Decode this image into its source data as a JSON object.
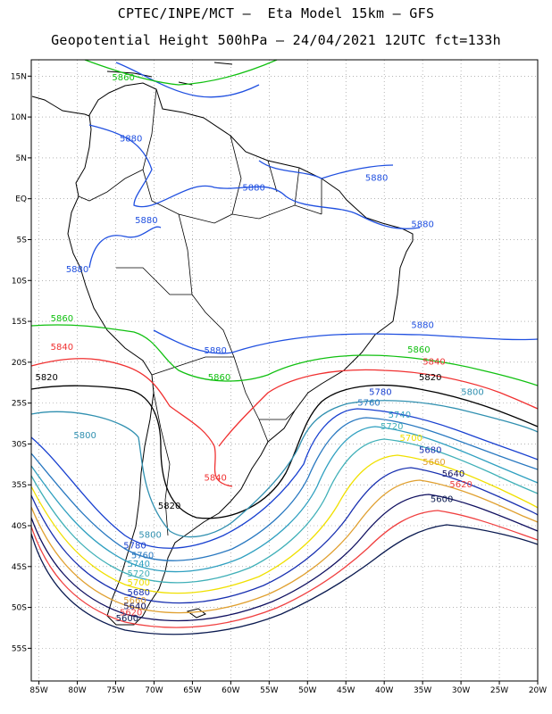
{
  "header": {
    "line1": "CPTEC/INPE/MCT –  Eta Model 15km – GFS",
    "line2": "Geopotential Height 500hPa – 24/04/2021 12UTC fct=133h"
  },
  "map": {
    "lon_range": [
      -86,
      -20
    ],
    "lat_range": [
      -59,
      17
    ],
    "lon_ticks": [
      "85W",
      "80W",
      "75W",
      "70W",
      "65W",
      "60W",
      "55W",
      "50W",
      "45W",
      "40W",
      "35W",
      "30W",
      "25W",
      "20W"
    ],
    "lat_ticks": [
      "15N",
      "10N",
      "5N",
      "EQ",
      "5S",
      "10S",
      "15S",
      "20S",
      "25S",
      "30S",
      "35S",
      "40S",
      "45S",
      "50S",
      "55S"
    ],
    "contours": [
      {
        "level": "5880",
        "color": "#2050e0"
      },
      {
        "level": "5860",
        "color": "#10c010"
      },
      {
        "level": "5840",
        "color": "#f03030"
      },
      {
        "level": "5820",
        "color": "#000000"
      },
      {
        "level": "5800",
        "color": "#3090b0"
      },
      {
        "level": "5780",
        "color": "#1840d0"
      },
      {
        "level": "5760",
        "color": "#2878c0"
      },
      {
        "level": "5740",
        "color": "#30a0c0"
      },
      {
        "level": "5720",
        "color": "#40b0b8"
      },
      {
        "level": "5700",
        "color": "#f0e000"
      },
      {
        "level": "5680",
        "color": "#1830b0"
      },
      {
        "level": "5660",
        "color": "#e0a030"
      },
      {
        "level": "5640",
        "color": "#101060"
      },
      {
        "level": "5620",
        "color": "#f04040"
      },
      {
        "level": "5600",
        "color": "#0a1a50"
      }
    ],
    "labels": [
      {
        "text": "5860",
        "lon": -74,
        "lat": 14.5,
        "color": "#10c010"
      },
      {
        "text": "5880",
        "lon": -73,
        "lat": 7,
        "color": "#2050e0"
      },
      {
        "text": "5880",
        "lon": -57,
        "lat": 1,
        "color": "#2050e0"
      },
      {
        "text": "5880",
        "lon": -41,
        "lat": 2.2,
        "color": "#2050e0"
      },
      {
        "text": "5880",
        "lon": -71,
        "lat": -3,
        "color": "#2050e0"
      },
      {
        "text": "5880",
        "lon": -35,
        "lat": -3.5,
        "color": "#2050e0"
      },
      {
        "text": "5880",
        "lon": -80,
        "lat": -9,
        "color": "#2050e0"
      },
      {
        "text": "5860",
        "lon": -82,
        "lat": -15,
        "color": "#10c010"
      },
      {
        "text": "5880",
        "lon": -35,
        "lat": -15.8,
        "color": "#2050e0"
      },
      {
        "text": "5880",
        "lon": -62,
        "lat": -18.9,
        "color": "#2050e0"
      },
      {
        "text": "5860",
        "lon": -35.5,
        "lat": -18.8,
        "color": "#10c010"
      },
      {
        "text": "5840",
        "lon": -82,
        "lat": -18.5,
        "color": "#f03030"
      },
      {
        "text": "5840",
        "lon": -33.5,
        "lat": -20.3,
        "color": "#f03030"
      },
      {
        "text": "5860",
        "lon": -61.5,
        "lat": -22.2,
        "color": "#10c010"
      },
      {
        "text": "5820",
        "lon": -84,
        "lat": -22.2,
        "color": "#000000"
      },
      {
        "text": "5820",
        "lon": -34,
        "lat": -22.2,
        "color": "#000000"
      },
      {
        "text": "5800",
        "lon": -28.5,
        "lat": -24,
        "color": "#3090b0"
      },
      {
        "text": "5780",
        "lon": -40.5,
        "lat": -24,
        "color": "#1840d0"
      },
      {
        "text": "5760",
        "lon": -42,
        "lat": -25.3,
        "color": "#2878c0"
      },
      {
        "text": "5740",
        "lon": -38,
        "lat": -26.8,
        "color": "#30a0c0"
      },
      {
        "text": "5720",
        "lon": -39,
        "lat": -28.2,
        "color": "#40b0b8"
      },
      {
        "text": "5800",
        "lon": -79,
        "lat": -29.3,
        "color": "#3090b0"
      },
      {
        "text": "5700",
        "lon": -36.5,
        "lat": -29.6,
        "color": "#f0e000"
      },
      {
        "text": "5680",
        "lon": -34,
        "lat": -31.1,
        "color": "#1830b0"
      },
      {
        "text": "5660",
        "lon": -33.5,
        "lat": -32.6,
        "color": "#e0a030"
      },
      {
        "text": "5640",
        "lon": -31,
        "lat": -34,
        "color": "#101060"
      },
      {
        "text": "5840",
        "lon": -62,
        "lat": -34.5,
        "color": "#f03030"
      },
      {
        "text": "5620",
        "lon": -30,
        "lat": -35.3,
        "color": "#f04040"
      },
      {
        "text": "5600",
        "lon": -32.5,
        "lat": -37.1,
        "color": "#0a1a50"
      },
      {
        "text": "5820",
        "lon": -68,
        "lat": -37.9,
        "color": "#000000"
      },
      {
        "text": "5800",
        "lon": -70.5,
        "lat": -41.5,
        "color": "#3090b0"
      },
      {
        "text": "5780",
        "lon": -72.5,
        "lat": -42.8,
        "color": "#1840d0"
      },
      {
        "text": "5760",
        "lon": -71.5,
        "lat": -44,
        "color": "#2878c0"
      },
      {
        "text": "5740",
        "lon": -72,
        "lat": -45,
        "color": "#30a0c0"
      },
      {
        "text": "5720",
        "lon": -72,
        "lat": -46.2,
        "color": "#40b0b8"
      },
      {
        "text": "5700",
        "lon": -72,
        "lat": -47.3,
        "color": "#f0e000"
      },
      {
        "text": "5680",
        "lon": -72,
        "lat": -48.5,
        "color": "#1830b0"
      },
      {
        "text": "5660",
        "lon": -72.5,
        "lat": -49.5,
        "color": "#e0a030"
      },
      {
        "text": "5640",
        "lon": -72.5,
        "lat": -50.2,
        "color": "#101060"
      },
      {
        "text": "5620",
        "lon": -73,
        "lat": -51,
        "color": "#f04040"
      },
      {
        "text": "5600",
        "lon": -73.5,
        "lat": -51.7,
        "color": "#0a1a50"
      }
    ]
  }
}
